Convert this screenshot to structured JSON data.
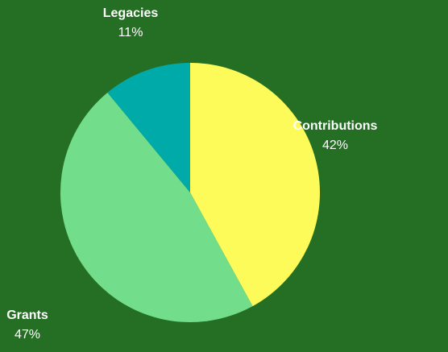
{
  "chart_data": {
    "type": "pie",
    "title": "",
    "start_angle_deg": 0,
    "direction": "clockwise",
    "slices": [
      {
        "label": "Contributions",
        "value": 42,
        "value_label": "42%",
        "color": "#fdfb59"
      },
      {
        "label": "Grants",
        "value": 47,
        "value_label": "47%",
        "color": "#72dd8a"
      },
      {
        "label": "Legacies",
        "value": 11,
        "value_label": "11%",
        "color": "#00aaa8"
      }
    ],
    "background_color": "#246f24",
    "label_color": "#ffffff"
  }
}
